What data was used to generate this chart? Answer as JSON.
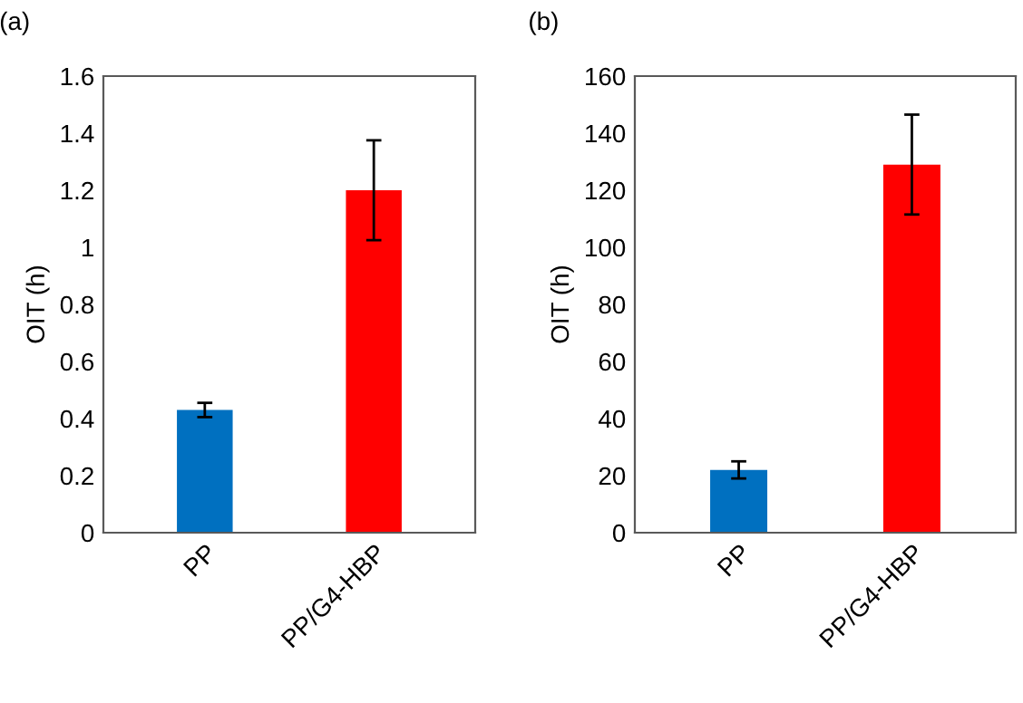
{
  "chart_data": [
    {
      "type": "bar",
      "title": "(a)",
      "ylabel": "OIT (h)",
      "categories": [
        "PP",
        "PP/G4-HBP"
      ],
      "values": [
        0.43,
        1.2
      ],
      "colors": [
        "#0070c0",
        "#ff0000"
      ],
      "errors": [
        0.025,
        0.175
      ],
      "ylim": [
        0,
        1.6
      ],
      "yticks": [
        0,
        0.2,
        0.4,
        0.6,
        0.8,
        1,
        1.2,
        1.4,
        1.6
      ],
      "grid": false,
      "legend": false
    },
    {
      "type": "bar",
      "title": "(b)",
      "ylabel": "OIT (h)",
      "categories": [
        "PP",
        "PP/G4-HBP"
      ],
      "values": [
        22,
        129
      ],
      "colors": [
        "#0070c0",
        "#ff0000"
      ],
      "errors": [
        3,
        17.5
      ],
      "ylim": [
        0,
        160
      ],
      "yticks": [
        0,
        20,
        40,
        60,
        80,
        100,
        120,
        140,
        160
      ],
      "grid": false,
      "legend": false
    }
  ]
}
